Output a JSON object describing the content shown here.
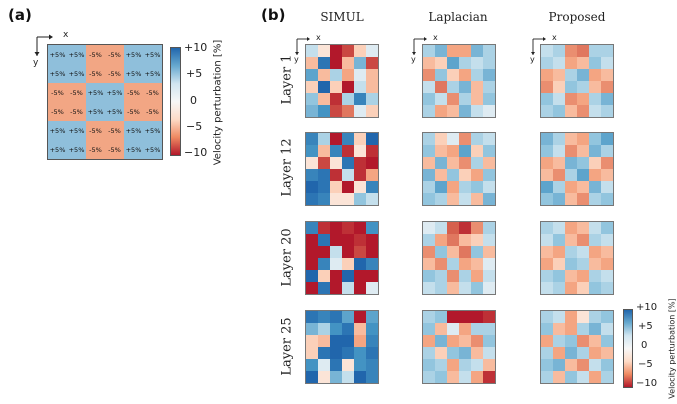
{
  "panel_a": {
    "label": "(a)",
    "axis_x": "x",
    "axis_y": "y",
    "cells": [
      [
        "+5%",
        "+5%",
        "-5%",
        "-5%",
        "+5%",
        "+5%"
      ],
      [
        "+5%",
        "+5%",
        "-5%",
        "-5%",
        "+5%",
        "+5%"
      ],
      [
        "-5%",
        "-5%",
        "+5%",
        "+5%",
        "-5%",
        "-5%"
      ],
      [
        "-5%",
        "-5%",
        "+5%",
        "+5%",
        "-5%",
        "-5%"
      ],
      [
        "+5%",
        "+5%",
        "-5%",
        "-5%",
        "+5%",
        "+5%"
      ],
      [
        "+5%",
        "+5%",
        "-5%",
        "-5%",
        "+5%",
        "+5%"
      ]
    ],
    "colorbar": {
      "label": "Velocity perturbation [%]",
      "ticks": [
        "+10",
        "+5",
        "0",
        "−5",
        "−10"
      ]
    }
  },
  "panel_b": {
    "label": "(b)",
    "axis_x": "x",
    "axis_y": "y",
    "columns": [
      "SIMUL",
      "Laplacian",
      "Proposed"
    ],
    "rows": [
      "Layer 1",
      "Layer 12",
      "Layer 20",
      "Layer 25"
    ],
    "grids": [
      [
        [
          [
            2,
            -1,
            -10,
            -8,
            -2,
            1
          ],
          [
            -3,
            9,
            -10,
            -3,
            5,
            -8
          ],
          [
            6,
            -3,
            3,
            -4,
            1,
            -3
          ],
          [
            -2,
            10,
            -2,
            -10,
            2,
            -3
          ],
          [
            4,
            -3,
            -9,
            3,
            8,
            3
          ],
          [
            5,
            7,
            -8,
            -6,
            1,
            -2
          ]
        ],
        [
          [
            3,
            5,
            -4,
            -4,
            5,
            3
          ],
          [
            -3,
            -2,
            6,
            3,
            2,
            3
          ],
          [
            -5,
            4,
            -2,
            -4,
            3,
            5
          ],
          [
            2,
            -6,
            3,
            5,
            -3,
            3
          ],
          [
            4,
            2,
            -5,
            3,
            -3,
            4
          ],
          [
            3,
            -4,
            -3,
            5,
            2,
            1
          ]
        ],
        [
          [
            2,
            3,
            -5,
            -6,
            3,
            3
          ],
          [
            3,
            2,
            -4,
            -3,
            4,
            2
          ],
          [
            -4,
            -3,
            3,
            5,
            -4,
            -3
          ],
          [
            -5,
            -2,
            4,
            3,
            -3,
            -5
          ],
          [
            4,
            2,
            -5,
            -4,
            3,
            5
          ],
          [
            3,
            4,
            -3,
            -5,
            2,
            3
          ]
        ]
      ],
      [
        [
          [
            8,
            3,
            -10,
            8,
            -2,
            10
          ],
          [
            7,
            -3,
            8,
            -9,
            -1,
            -9
          ],
          [
            -1,
            -8,
            -1,
            9,
            -9,
            -10
          ],
          [
            8,
            9,
            -9,
            2,
            -9,
            -4
          ],
          [
            10,
            9,
            -2,
            -10,
            -1,
            8
          ],
          [
            9,
            8,
            -1,
            -1,
            4,
            2
          ]
        ],
        [
          [
            3,
            -2,
            1,
            -5,
            3,
            2
          ],
          [
            4,
            -3,
            -4,
            6,
            -2,
            4
          ],
          [
            -3,
            5,
            -3,
            -5,
            3,
            -3
          ],
          [
            5,
            -3,
            4,
            -2,
            -4,
            4
          ],
          [
            3,
            6,
            -4,
            3,
            4,
            2
          ],
          [
            4,
            3,
            -3,
            2,
            -3,
            5
          ]
        ],
        [
          [
            5,
            3,
            -3,
            -4,
            4,
            6
          ],
          [
            4,
            2,
            -5,
            -3,
            5,
            3
          ],
          [
            -4,
            -3,
            5,
            4,
            -2,
            -5
          ],
          [
            -3,
            -5,
            3,
            6,
            -4,
            -3
          ],
          [
            6,
            3,
            -4,
            -3,
            5,
            2
          ],
          [
            4,
            5,
            -3,
            -5,
            3,
            4
          ]
        ]
      ],
      [
        [
          [
            8,
            -9,
            -10,
            -9,
            -10,
            7
          ],
          [
            -10,
            9,
            -10,
            -10,
            -9,
            -10
          ],
          [
            -10,
            -10,
            2,
            -10,
            -8,
            -10
          ],
          [
            -10,
            8,
            1,
            -2,
            10,
            8
          ],
          [
            10,
            -2,
            -10,
            10,
            -10,
            -10
          ],
          [
            -10,
            9,
            -10,
            2,
            -10,
            1
          ]
        ],
        [
          [
            1,
            2,
            -7,
            -9,
            -5,
            3
          ],
          [
            3,
            -4,
            -6,
            -3,
            -2,
            2
          ],
          [
            -5,
            4,
            -3,
            -6,
            4,
            -3
          ],
          [
            -3,
            -5,
            3,
            -4,
            -3,
            1
          ],
          [
            4,
            3,
            -5,
            3,
            -4,
            2
          ],
          [
            2,
            3,
            -3,
            2,
            4,
            1
          ]
        ],
        [
          [
            3,
            2,
            -4,
            -3,
            2,
            4
          ],
          [
            2,
            4,
            -3,
            -5,
            3,
            2
          ],
          [
            -3,
            -4,
            3,
            2,
            -4,
            -3
          ],
          [
            -4,
            -2,
            4,
            3,
            -3,
            -4
          ],
          [
            3,
            4,
            -3,
            -4,
            3,
            2
          ],
          [
            2,
            3,
            -4,
            -2,
            4,
            3
          ]
        ]
      ],
      [
        [
          [
            9,
            8,
            9,
            6,
            -10,
            6
          ],
          [
            5,
            3,
            7,
            9,
            -3,
            7
          ],
          [
            -2,
            -3,
            10,
            10,
            -4,
            8
          ],
          [
            -2,
            9,
            10,
            9,
            7,
            9
          ],
          [
            7,
            1,
            9,
            -1,
            7,
            8
          ],
          [
            10,
            -1,
            5,
            2,
            10,
            8
          ]
        ],
        [
          [
            3,
            4,
            -10,
            -10,
            -10,
            -9
          ],
          [
            4,
            -3,
            1,
            -4,
            3,
            3
          ],
          [
            -4,
            5,
            -4,
            -3,
            -5,
            4
          ],
          [
            3,
            -2,
            4,
            5,
            -3,
            2
          ],
          [
            4,
            3,
            -4,
            3,
            2,
            -3
          ],
          [
            3,
            4,
            -3,
            2,
            -4,
            -9
          ]
        ],
        [
          [
            3,
            2,
            -4,
            -1,
            3,
            4
          ],
          [
            4,
            -3,
            -4,
            3,
            5,
            2
          ],
          [
            -4,
            3,
            4,
            -5,
            -3,
            4
          ],
          [
            3,
            -4,
            5,
            3,
            -4,
            -3
          ],
          [
            4,
            5,
            -3,
            -5,
            2,
            4
          ],
          [
            3,
            -3,
            4,
            2,
            -4,
            3
          ]
        ]
      ]
    ],
    "colorbar": {
      "label": "Velocity perturbation [%]",
      "ticks": [
        "+10",
        "+5",
        "0",
        "−5",
        "−10"
      ]
    }
  }
}
